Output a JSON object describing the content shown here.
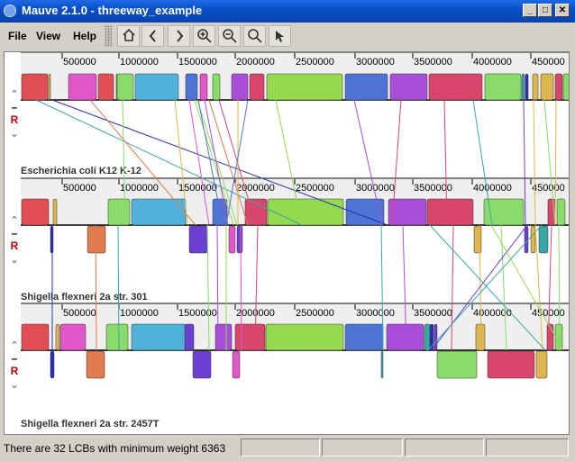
{
  "window": {
    "title": "Mauve 2.1.0 - threeway_example",
    "minimize": "_",
    "maximize": "□",
    "close": "✕"
  },
  "menu": {
    "file": "File",
    "view": "View",
    "help": "Help"
  },
  "toolbar": [
    "home-icon",
    "scroll-left-icon",
    "scroll-right-icon",
    "zoom-in-icon",
    "zoom-out-icon",
    "zoom-reset-icon",
    "help-pointer-icon"
  ],
  "genome_controls": {
    "up": "⌃",
    "minus": "–",
    "reverse": "R",
    "down": "⌄"
  },
  "genomes": [
    {
      "name": "Escherichia coli K12 K-12",
      "ticks": [
        "500000",
        "1000000",
        "1500000",
        "2000000",
        "2500000",
        "3000000",
        "3500000",
        "4000000",
        "450000"
      ]
    },
    {
      "name": "Shigella flexneri 2a str. 301",
      "ticks": [
        "500000",
        "1000000",
        "1500000",
        "2000000",
        "2500000",
        "3000000",
        "3500000",
        "4000000",
        "450000"
      ]
    },
    {
      "name": "Shigella flexneri 2a str. 2457T",
      "ticks": [
        "500000",
        "1000000",
        "1500000",
        "2000000",
        "2500000",
        "3000000",
        "3500000",
        "4000000",
        "450000"
      ]
    }
  ],
  "colors": {
    "red": "#e14f55",
    "magenta": "#e157c9",
    "green": "#89dc6a",
    "blue": "#4e74d6",
    "cyan": "#4fb3d9",
    "purple": "#a84ed8",
    "yellow": "#ddb64f",
    "orange": "#e07a4f",
    "teal": "#3aa7a7",
    "darkblue": "#2d2db8",
    "crimson": "#d9466b",
    "lime": "#95d94f",
    "violet": "#6c3fd3"
  },
  "status": {
    "message": "There are 32 LCBs with minimum weight 6363"
  }
}
